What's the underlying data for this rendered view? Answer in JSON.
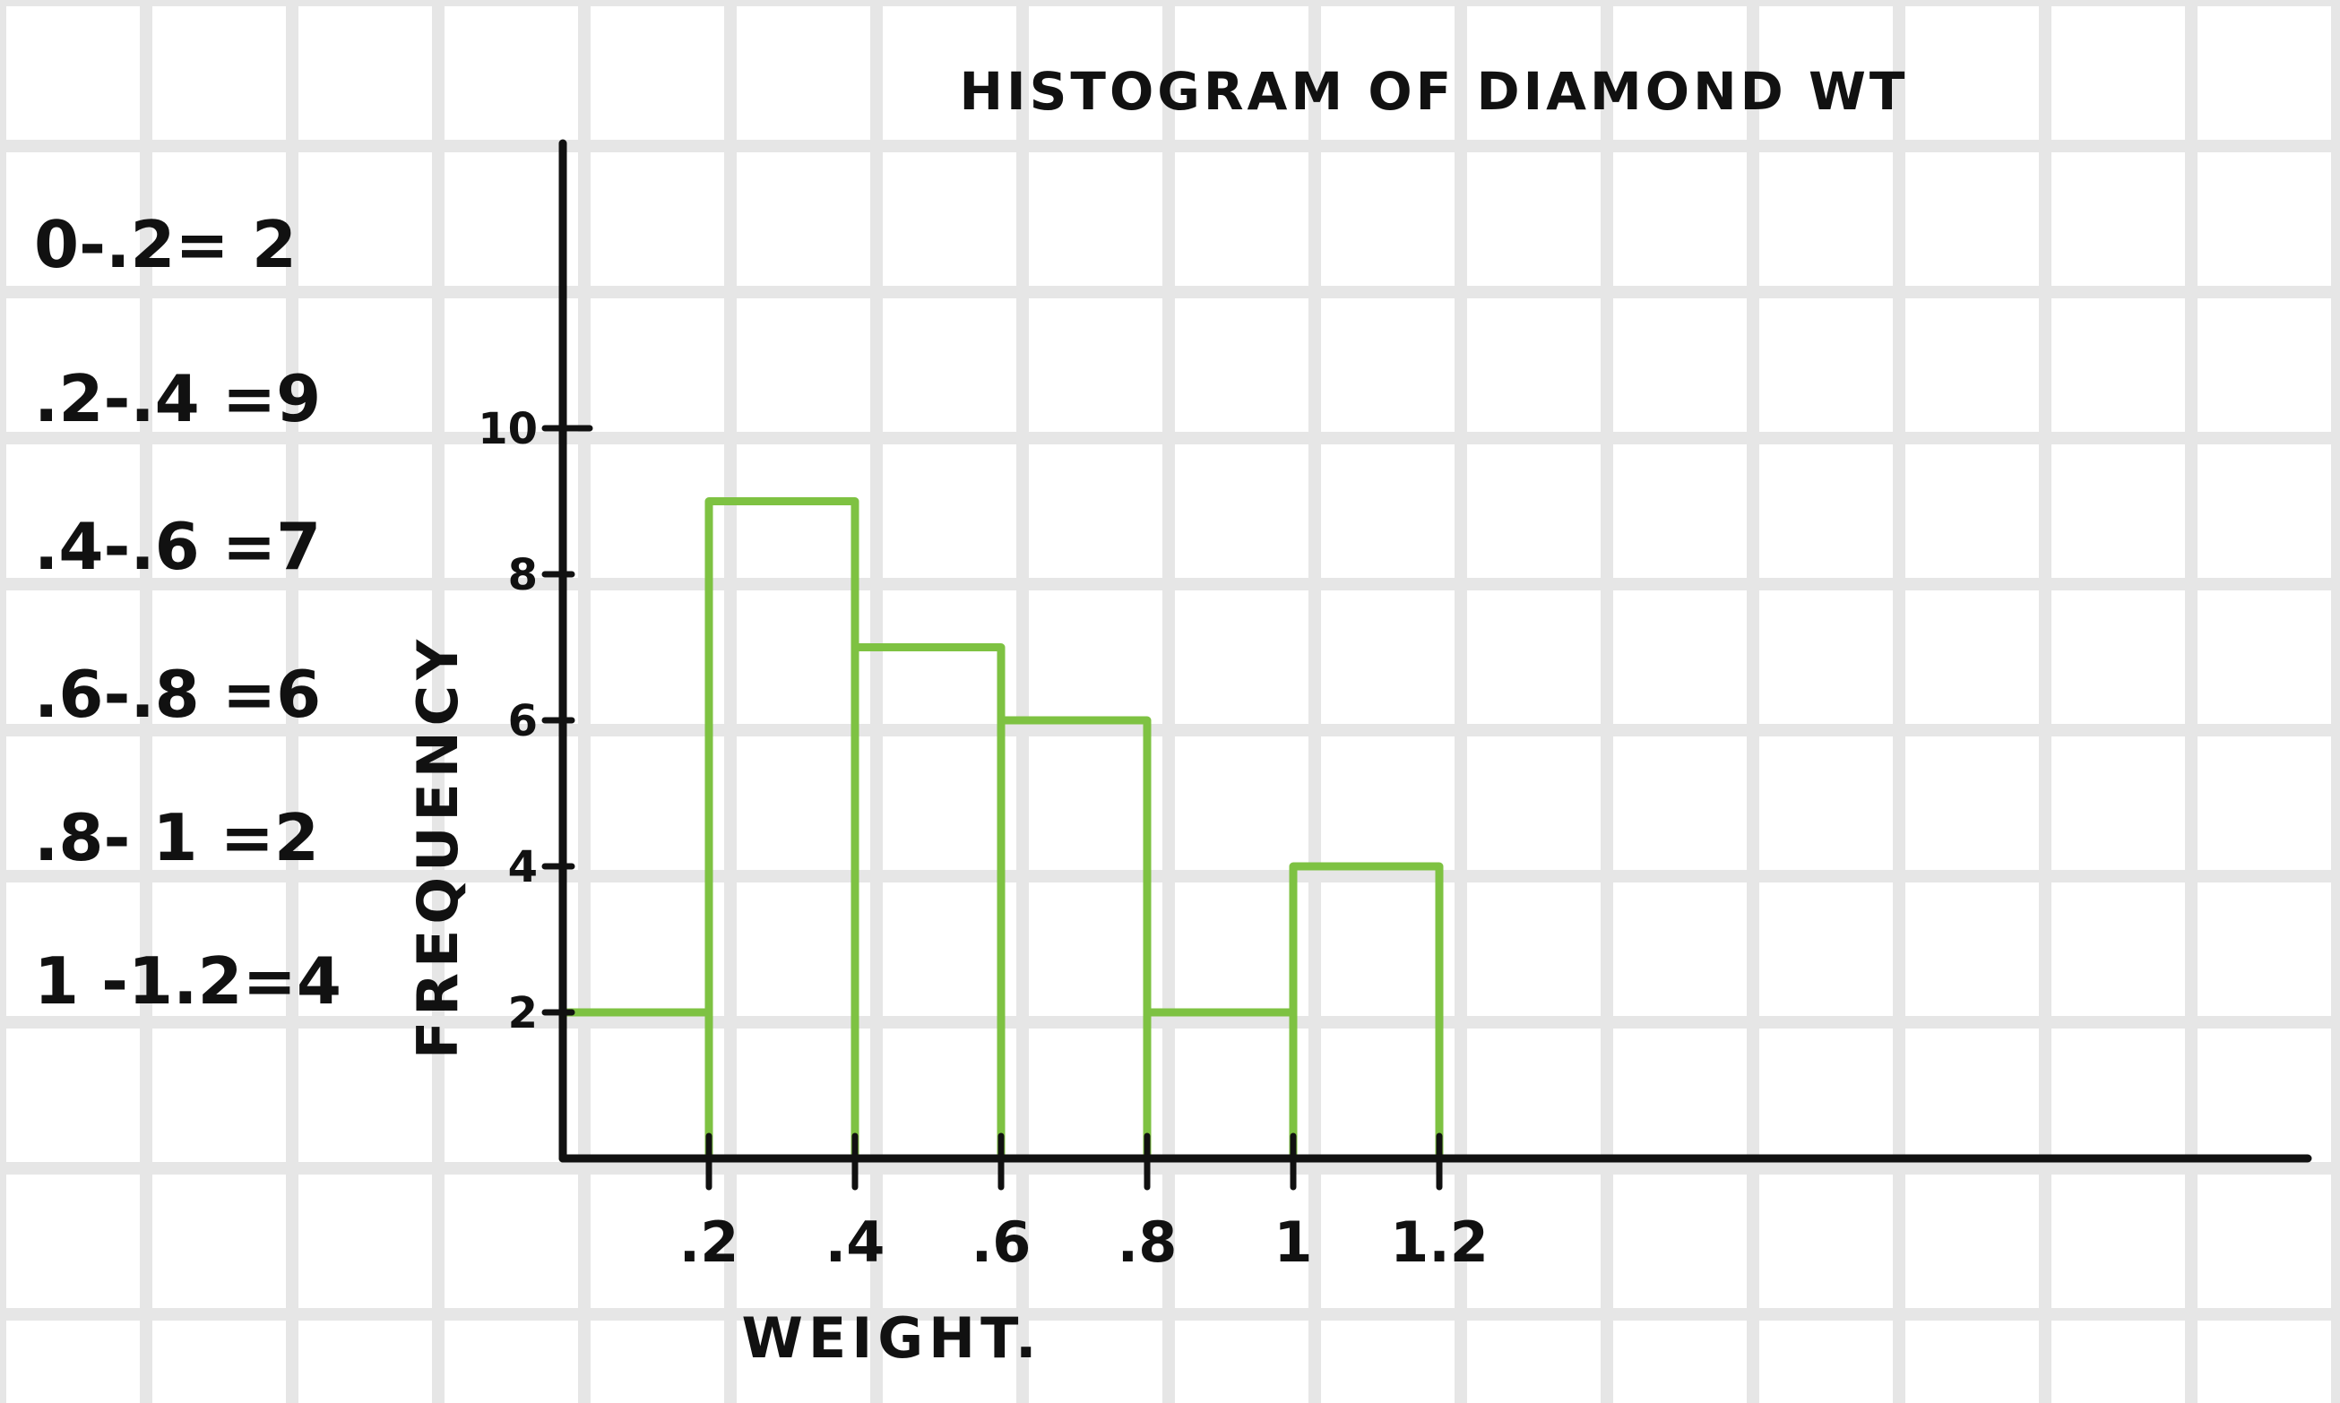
{
  "chart_data": {
    "type": "bar",
    "title": "HISTOGRAM OF DIAMOND WT",
    "xlabel": "WEIGHT.",
    "ylabel": "FREQUENCY",
    "bins": [
      [
        0,
        0.2
      ],
      [
        0.2,
        0.4
      ],
      [
        0.4,
        0.6
      ],
      [
        0.6,
        0.8
      ],
      [
        0.8,
        1.0
      ],
      [
        1.0,
        1.2
      ]
    ],
    "values": [
      2,
      9,
      7,
      6,
      2,
      4
    ],
    "xticks": [
      0.2,
      0.4,
      0.6,
      0.8,
      1.0,
      1.2
    ],
    "xtick_labels": [
      ".2",
      ".4",
      ".6",
      ".8",
      "1",
      "1.2"
    ],
    "yticks": [
      2,
      4,
      6,
      8,
      10
    ],
    "ytick_labels": [
      "2",
      "4",
      "6",
      "8",
      "10"
    ],
    "xlim": [
      0,
      2.4
    ],
    "ylim": [
      0,
      10
    ],
    "grid": true,
    "colors": {
      "bars": "#7ec242",
      "axes": "#111111",
      "grid": "#e6e6e6"
    },
    "frequency_table": [
      "0-.2= 2",
      ".2-.4 =9",
      ".4-.6 =7",
      ".6-.8 =6",
      ".8- 1 =2",
      "1 -1.2=4"
    ]
  }
}
